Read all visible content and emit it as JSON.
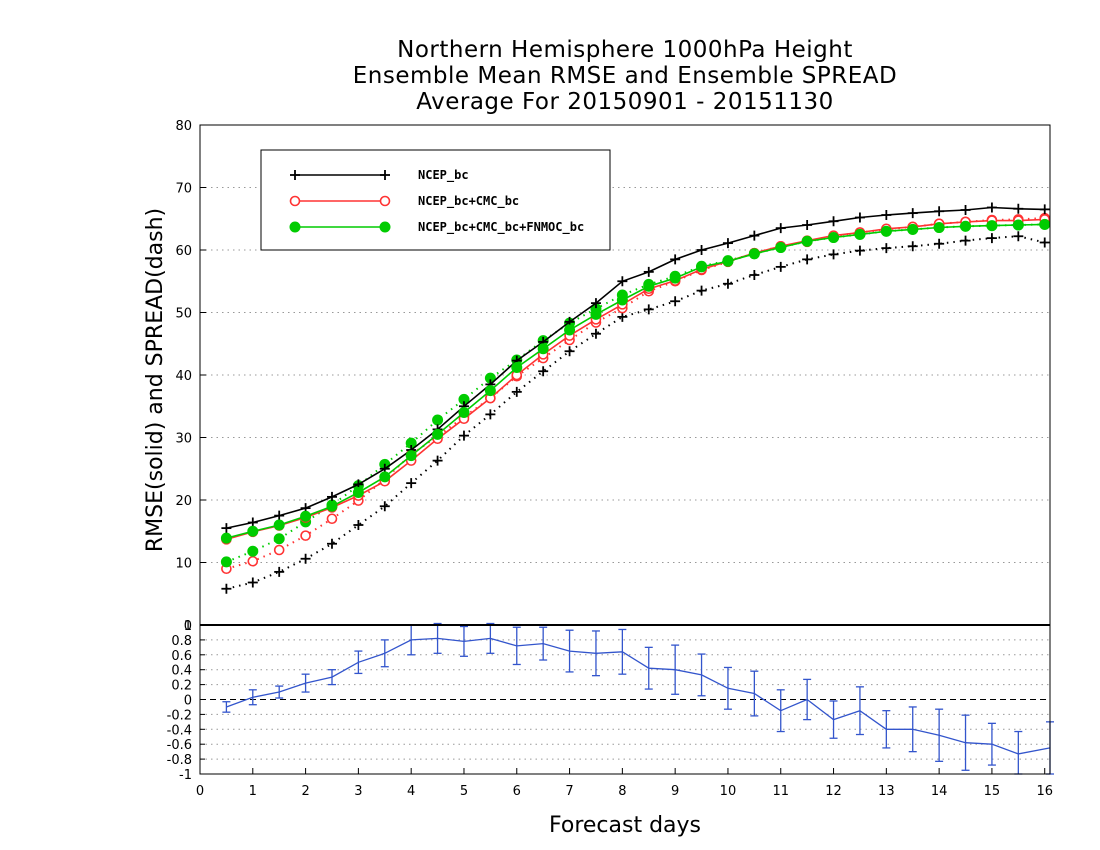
{
  "titles": {
    "line1": "Northern Hemisphere 1000hPa Height",
    "line2": "Ensemble Mean RMSE and Ensemble SPREAD",
    "line3": "Average For 20150901 - 20151130"
  },
  "chart_data": [
    {
      "type": "line",
      "ylabel": "RMSE(solid) and SPREAD(dash)",
      "xlim": [
        0,
        16.1
      ],
      "ylim": [
        0,
        80
      ],
      "y_ticks": [
        10,
        20,
        30,
        40,
        50,
        60,
        70,
        80
      ],
      "grid": true,
      "legend": "top-left",
      "x": [
        0.5,
        1,
        1.5,
        2,
        2.5,
        3,
        3.5,
        4,
        4.5,
        5,
        5.5,
        6,
        6.5,
        7,
        7.5,
        8,
        8.5,
        9,
        9.5,
        10,
        10.5,
        11,
        11.5,
        12,
        12.5,
        13,
        13.5,
        14,
        14.5,
        15,
        15.5,
        16
      ],
      "series": [
        {
          "name": "NCEP_bc",
          "color": "#000000",
          "marker": "plus",
          "style": "solid",
          "values": [
            15.5,
            16.4,
            17.5,
            18.7,
            20.5,
            22.5,
            25,
            28,
            31.3,
            35,
            38.5,
            42.3,
            45.3,
            48.5,
            51.5,
            55,
            56.5,
            58.5,
            60,
            61.1,
            62.3,
            63.5,
            64,
            64.6,
            65.2,
            65.6,
            65.9,
            66.2,
            66.4,
            66.8,
            66.6,
            66.5
          ]
        },
        {
          "name": "NCEP_bc+CMC_bc",
          "color": "#ff3333",
          "marker": "circle-open",
          "style": "solid",
          "values": [
            13.7,
            14.9,
            15.9,
            17.2,
            18.8,
            20.7,
            23,
            26.3,
            29.8,
            33,
            36.3,
            40,
            43.3,
            46.3,
            48.9,
            51.3,
            53.8,
            55.1,
            56.9,
            58.2,
            59.5,
            60.6,
            61.5,
            62.3,
            62.8,
            63.4,
            63.7,
            64.2,
            64.5,
            64.7,
            64.7,
            64.9
          ]
        },
        {
          "name": "NCEP_bc+CMC_bc+FNMOC_bc",
          "color": "#00cc00",
          "marker": "circle-filled",
          "style": "solid",
          "values": [
            13.9,
            15,
            16,
            17.4,
            19,
            21.2,
            23.7,
            27.1,
            30.5,
            34,
            37.5,
            41.2,
            44.2,
            47.2,
            49.7,
            52,
            54.2,
            55.5,
            57.3,
            58.2,
            59.4,
            60.4,
            61.4,
            62,
            62.5,
            63,
            63.3,
            63.6,
            63.8,
            63.9,
            64,
            64.1
          ]
        },
        {
          "name": "NCEP_bc spread",
          "color": "#000000",
          "marker": "plus",
          "style": "dotted",
          "values": [
            5.8,
            6.8,
            8.5,
            10.6,
            13,
            16,
            19,
            22.7,
            26.3,
            30.3,
            33.7,
            37.3,
            40.6,
            43.8,
            46.6,
            49.3,
            50.5,
            51.8,
            53.5,
            54.6,
            56,
            57.3,
            58.5,
            59.3,
            59.9,
            60.3,
            60.6,
            61,
            61.5,
            61.9,
            62.2,
            61.2
          ]
        },
        {
          "name": "NCEP_bc+CMC_bc spread",
          "color": "#ff3333",
          "marker": "circle-open",
          "style": "dotted",
          "values": [
            9,
            10.2,
            12,
            14.3,
            17,
            19.9,
            23.3,
            27.3,
            30.2,
            33.3,
            36.3,
            39.8,
            42.7,
            45.6,
            48.4,
            50.7,
            53.4,
            55,
            56.8,
            58.1,
            59.5,
            60.6,
            61.3,
            62.2,
            62.8,
            63.3,
            63.7,
            64.2,
            64.5,
            64.8,
            64.9,
            65.1
          ]
        },
        {
          "name": "NCEP_bc+CMC_bc+FNMOC_bc spread",
          "color": "#00cc00",
          "marker": "circle-filled",
          "style": "dotted",
          "values": [
            10.1,
            11.8,
            13.8,
            16.5,
            19.2,
            22.3,
            25.7,
            29.1,
            32.8,
            36.1,
            39.5,
            42.4,
            45.5,
            48.3,
            50.6,
            52.8,
            54.5,
            55.8,
            57.4,
            58.3,
            59.4,
            60.4,
            61.4,
            62,
            62.5,
            63,
            63.3,
            63.6,
            63.8,
            63.9,
            64,
            64.1
          ]
        }
      ]
    },
    {
      "type": "line",
      "xlabel": "Forecast days",
      "xlim": [
        0,
        16.1
      ],
      "ylim": [
        -1,
        1
      ],
      "x_ticks": [
        0,
        1,
        2,
        3,
        4,
        5,
        6,
        7,
        8,
        9,
        10,
        11,
        12,
        13,
        14,
        15,
        16
      ],
      "y_ticks": [
        -1,
        -0.8,
        -0.6,
        -0.4,
        -0.2,
        0,
        0.2,
        0.4,
        0.6,
        0.8,
        1
      ],
      "y_tick_labels": [
        "-1",
        "-0.8",
        "-0.6",
        "-0.4",
        "-0.2",
        "0",
        "0.2",
        "0.4",
        "0.6",
        "0.8",
        "1"
      ],
      "top_label": "0",
      "series": [
        {
          "name": "difference",
          "color": "#3355cc",
          "error_bars": true,
          "x": [
            0.5,
            1,
            1.5,
            2,
            2.5,
            3,
            3.5,
            4,
            4.5,
            5,
            5.5,
            6,
            6.5,
            7,
            7.5,
            8,
            8.5,
            9,
            9.5,
            10,
            10.5,
            11,
            11.5,
            12,
            12.5,
            13,
            13.5,
            14,
            14.5,
            15,
            15.5,
            16.1
          ],
          "values": [
            -0.1,
            0.03,
            0.1,
            0.22,
            0.3,
            0.5,
            0.62,
            0.8,
            0.82,
            0.78,
            0.82,
            0.72,
            0.75,
            0.65,
            0.62,
            0.64,
            0.42,
            0.4,
            0.33,
            0.15,
            0.08,
            -0.15,
            0.0,
            -0.27,
            -0.15,
            -0.4,
            -0.4,
            -0.48,
            -0.58,
            -0.6,
            -0.73,
            -0.65
          ],
          "err": [
            0.07,
            0.1,
            0.08,
            0.12,
            0.1,
            0.15,
            0.18,
            0.2,
            0.2,
            0.2,
            0.2,
            0.25,
            0.22,
            0.28,
            0.3,
            0.3,
            0.28,
            0.33,
            0.28,
            0.28,
            0.3,
            0.28,
            0.27,
            0.25,
            0.32,
            0.25,
            0.3,
            0.35,
            0.37,
            0.28,
            0.3,
            0.35
          ]
        }
      ]
    }
  ]
}
